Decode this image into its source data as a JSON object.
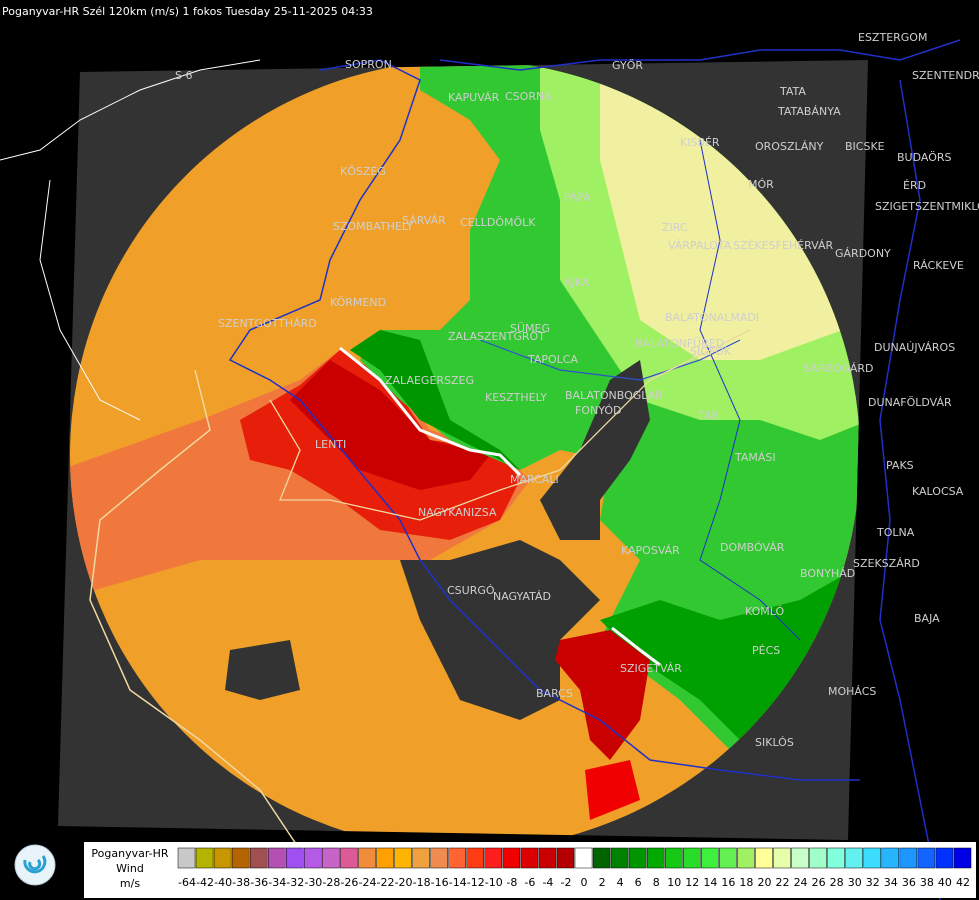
{
  "header": {
    "title": "Poganyvar-HR Szél 120km (m/s) 1 fokos Tuesday 25-11-2025 04:33"
  },
  "roads": [
    "S 6"
  ],
  "towns": [
    "SOPRON",
    "KAPUVÁR",
    "CSORNA",
    "GYŐR",
    "TATA",
    "TATABÁNYA",
    "ESZTERGOM",
    "SZENTENDRE",
    "KISBÉR",
    "OROSZLÁNY",
    "BICSKE",
    "BUDAÖRS",
    "MÓR",
    "ÉRD",
    "SZIGETSZENTMIKLÓS",
    "PÁPA",
    "ZIRC",
    "VÁRPALOTA",
    "SZÉKESFEHÉRVÁR",
    "GÁRDONY",
    "RÁCKEVE",
    "AJKA",
    "KŐSZEG",
    "SZOMBATHELY",
    "SÁRVÁR",
    "CELLDÖMÖLK",
    "KÖRMEND",
    "SZENTGOTTHÁRD",
    "SÜMEG",
    "ZALASZENTGRÓT",
    "BALATONALMÁDI",
    "BALATONFÜRED",
    "SIÓFOK",
    "TAPOLCA",
    "DUNAÚJVÁROS",
    "SÁRBOGÁRD",
    "ZALAEGERSZEG",
    "KESZTHELY",
    "BALATONBOGLÁR",
    "FONYÓD",
    "TAB",
    "DUNAFÖLDVÁR",
    "LENTI",
    "TAMÁSI",
    "PAKS",
    "MARCALI",
    "KALOCSA",
    "NAGYKANIZSA",
    "KAPOSVÁR",
    "DOMBÓVÁR",
    "TOLNA",
    "SZEKSZÁRD",
    "BONYHÁD",
    "CSURGÓ",
    "NAGYATÁD",
    "KOMLÓ",
    "BAJA",
    "PÉCS",
    "SZIGETVÁR",
    "MOHÁCS",
    "BARCS",
    "SIKLÓS"
  ],
  "legend": {
    "labels": [
      "Poganyvar-HR",
      "Wind",
      "m/s"
    ],
    "ticks": [
      -64,
      -42,
      -40,
      -38,
      -36,
      -34,
      -32,
      -30,
      -28,
      -26,
      -24,
      -22,
      -20,
      -18,
      -16,
      -14,
      -12,
      -10,
      -8,
      -6,
      -4,
      -2,
      0,
      2,
      4,
      6,
      8,
      10,
      12,
      14,
      16,
      18,
      20,
      22,
      24,
      26,
      28,
      30,
      32,
      34,
      36,
      38,
      40,
      42
    ],
    "colors": [
      "#c8c8c8",
      "#b4b400",
      "#c89600",
      "#b46400",
      "#a05050",
      "#b450b4",
      "#a050f0",
      "#b45ae6",
      "#c864c8",
      "#dc5a96",
      "#f08c3c",
      "#ffa000",
      "#ffb400",
      "#f0a03c",
      "#f08c50",
      "#ff6432",
      "#ff3c14",
      "#ff1e1e",
      "#f00000",
      "#dc0000",
      "#c80000",
      "#b40000",
      "#ffffff",
      "#006400",
      "#008200",
      "#009600",
      "#00aa00",
      "#14c814",
      "#28dc28",
      "#3cf03c",
      "#64f050",
      "#a0f064",
      "#ffff96",
      "#e6ffaa",
      "#c8ffc8",
      "#a0ffc8",
      "#82ffdc",
      "#64f0f0",
      "#3cdcff",
      "#28b4ff",
      "#1e96ff",
      "#1464ff",
      "#0032ff",
      "#0000e6"
    ]
  }
}
